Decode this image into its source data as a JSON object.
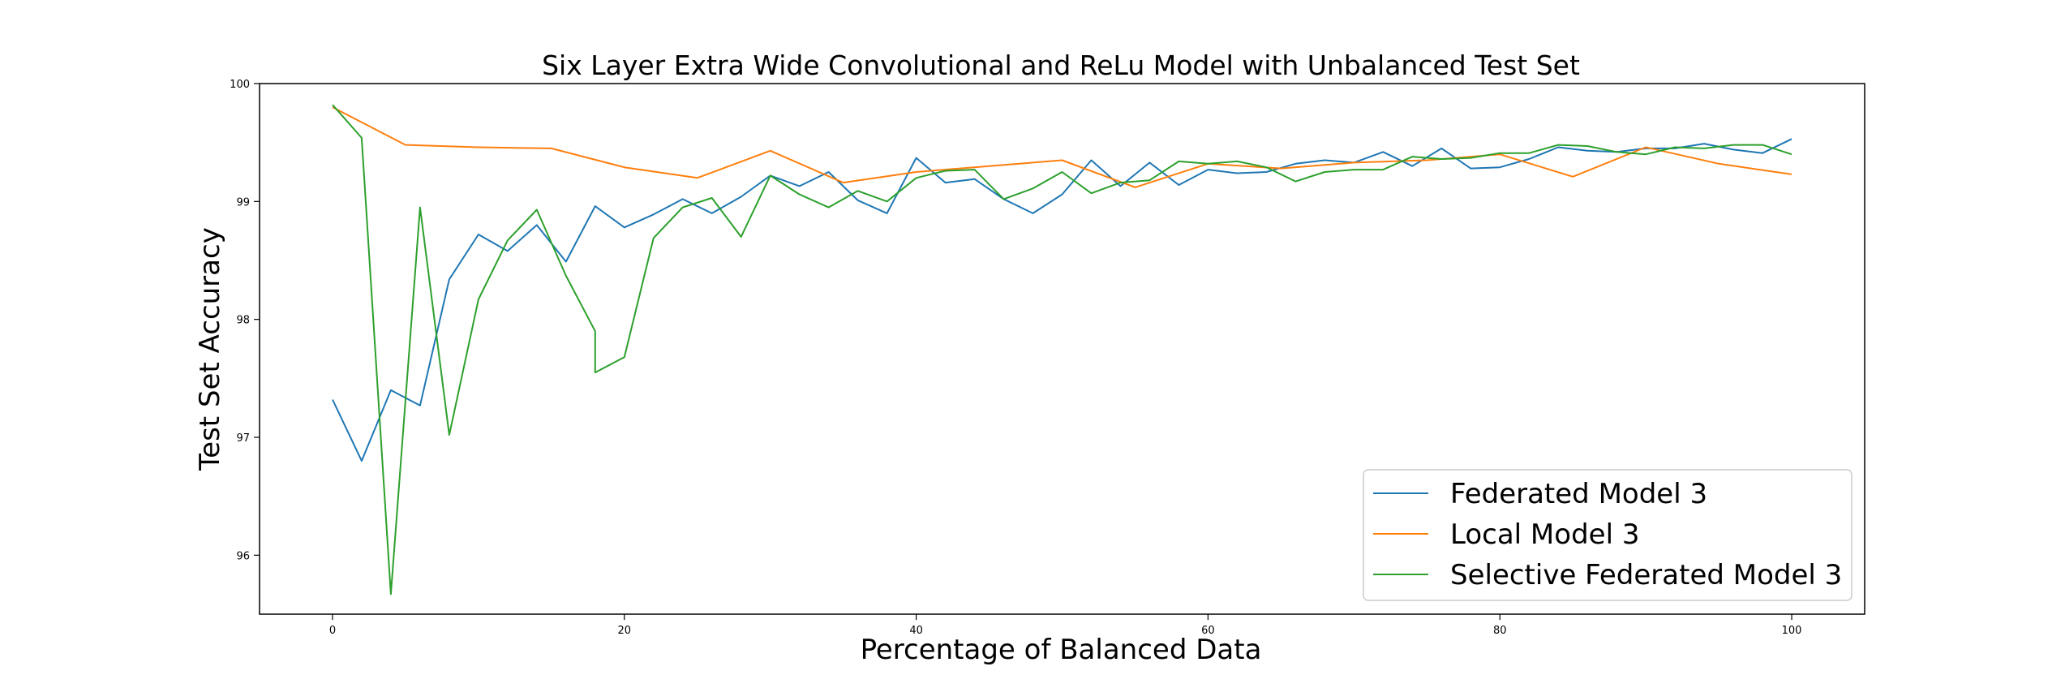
{
  "chart_data": {
    "type": "line",
    "title": "Six Layer Extra Wide Convolutional and ReLu Model with Unbalanced Test Set",
    "xlabel": "Percentage of Balanced Data",
    "ylabel": "Test Set Accuracy",
    "xlim": [
      -5,
      105
    ],
    "ylim": [
      95.5,
      100
    ],
    "xticks": [
      0,
      20,
      40,
      60,
      80,
      100
    ],
    "yticks": [
      96,
      97,
      98,
      99,
      100
    ],
    "grid": false,
    "legend_position": "lower-right",
    "series": [
      {
        "name": "Federated Model 3",
        "color": "#1f77b4",
        "x": [
          0,
          2,
          4,
          6,
          8,
          10,
          12,
          14,
          16,
          18,
          20,
          22,
          24,
          26,
          28,
          30,
          32,
          34,
          36,
          38,
          40,
          42,
          44,
          46,
          48,
          50,
          52,
          54,
          56,
          58,
          60,
          62,
          64,
          66,
          68,
          70,
          72,
          74,
          76,
          78,
          80,
          82,
          84,
          86,
          88,
          90,
          92,
          94,
          96,
          98,
          100
        ],
        "y": [
          97.32,
          96.8,
          97.4,
          97.27,
          98.34,
          98.72,
          98.58,
          98.8,
          98.49,
          98.96,
          98.78,
          98.89,
          99.02,
          98.9,
          99.04,
          99.22,
          99.13,
          99.25,
          99.01,
          98.9,
          99.37,
          99.16,
          99.19,
          99.02,
          98.9,
          99.06,
          99.35,
          99.13,
          99.33,
          99.14,
          99.27,
          99.24,
          99.25,
          99.32,
          99.35,
          99.33,
          99.42,
          99.3,
          99.45,
          99.28,
          99.29,
          99.36,
          99.46,
          99.43,
          99.42,
          99.45,
          99.45,
          99.49,
          99.44,
          99.41,
          99.53
        ]
      },
      {
        "name": "Local Model 3",
        "color": "#ff7f0e",
        "x": [
          0,
          5,
          10,
          15,
          20,
          25,
          30,
          35,
          40,
          45,
          50,
          55,
          60,
          65,
          70,
          75,
          80,
          85,
          90,
          95,
          100
        ],
        "y": [
          99.8,
          99.48,
          99.46,
          99.45,
          99.29,
          99.2,
          99.43,
          99.16,
          99.25,
          99.3,
          99.35,
          99.12,
          99.32,
          99.28,
          99.33,
          99.35,
          99.4,
          99.21,
          99.46,
          99.32,
          99.23
        ]
      },
      {
        "name": "Selective Federated Model 3",
        "color": "#2ca02c",
        "x": [
          0,
          2,
          4,
          6,
          8,
          10,
          12,
          14,
          16,
          18,
          18,
          20,
          22,
          24,
          26,
          28,
          30,
          32,
          34,
          36,
          38,
          40,
          42,
          44,
          46,
          48,
          50,
          52,
          54,
          56,
          58,
          60,
          62,
          64,
          66,
          68,
          70,
          72,
          74,
          76,
          78,
          80,
          82,
          84,
          86,
          88,
          90,
          92,
          94,
          96,
          98,
          100
        ],
        "y": [
          99.82,
          99.54,
          95.67,
          98.95,
          97.02,
          98.17,
          98.67,
          98.93,
          98.37,
          97.9,
          97.55,
          97.68,
          98.69,
          98.95,
          99.03,
          98.7,
          99.22,
          99.06,
          98.95,
          99.09,
          99.0,
          99.2,
          99.26,
          99.27,
          99.02,
          99.11,
          99.25,
          99.07,
          99.16,
          99.18,
          99.34,
          99.32,
          99.34,
          99.29,
          99.17,
          99.25,
          99.27,
          99.27,
          99.38,
          99.36,
          99.37,
          99.41,
          99.41,
          99.48,
          99.47,
          99.42,
          99.4,
          99.46,
          99.45,
          99.48,
          99.48,
          99.4
        ]
      }
    ]
  }
}
